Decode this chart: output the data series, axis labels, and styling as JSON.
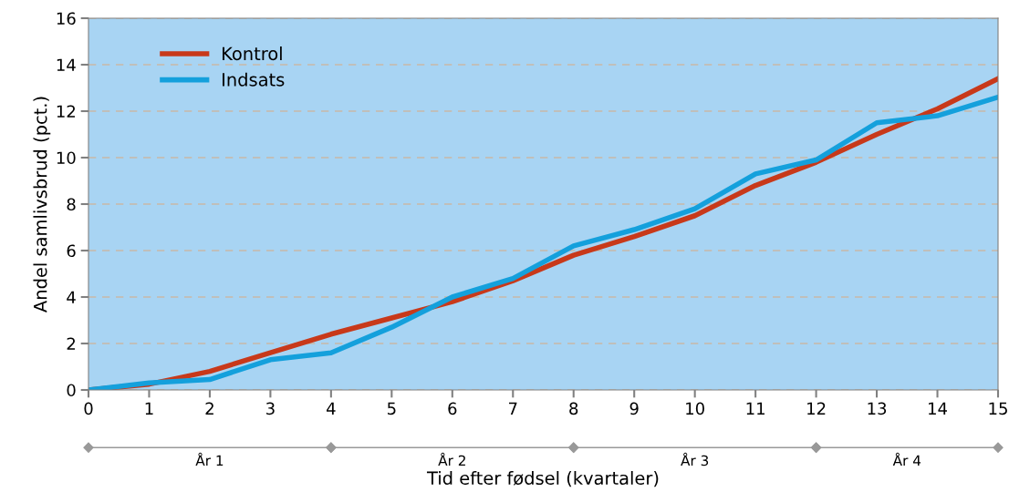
{
  "chart_data": {
    "type": "line",
    "xlabel": "Tid efter fødsel (kvartaler)",
    "ylabel": "Andel samlivsbrud (pct.)",
    "x": [
      0,
      1,
      2,
      3,
      4,
      5,
      6,
      7,
      8,
      9,
      10,
      11,
      12,
      13,
      14,
      15
    ],
    "series": [
      {
        "name": "Kontrol",
        "color": "#c8391a",
        "values": [
          0,
          0.25,
          0.8,
          1.6,
          2.4,
          3.1,
          3.8,
          4.7,
          5.8,
          6.6,
          7.5,
          8.8,
          9.8,
          11.0,
          12.1,
          13.4
        ]
      },
      {
        "name": "Indsats",
        "color": "#14a0dc",
        "values": [
          0,
          0.3,
          0.45,
          1.3,
          1.6,
          2.7,
          4.0,
          4.8,
          6.2,
          6.9,
          7.8,
          9.3,
          9.9,
          11.5,
          11.8,
          12.6
        ]
      }
    ],
    "xlim": [
      0,
      15
    ],
    "ylim": [
      0,
      16
    ],
    "xticks": [
      0,
      1,
      2,
      3,
      4,
      5,
      6,
      7,
      8,
      9,
      10,
      11,
      12,
      13,
      14,
      15
    ],
    "yticks": [
      0,
      2,
      4,
      6,
      8,
      10,
      12,
      14,
      16
    ],
    "annotations": [
      "År 1",
      "År 2",
      "År 3",
      "År 4"
    ],
    "grid": "y",
    "legend": "top left",
    "marker": "none",
    "line_style": "solid"
  }
}
